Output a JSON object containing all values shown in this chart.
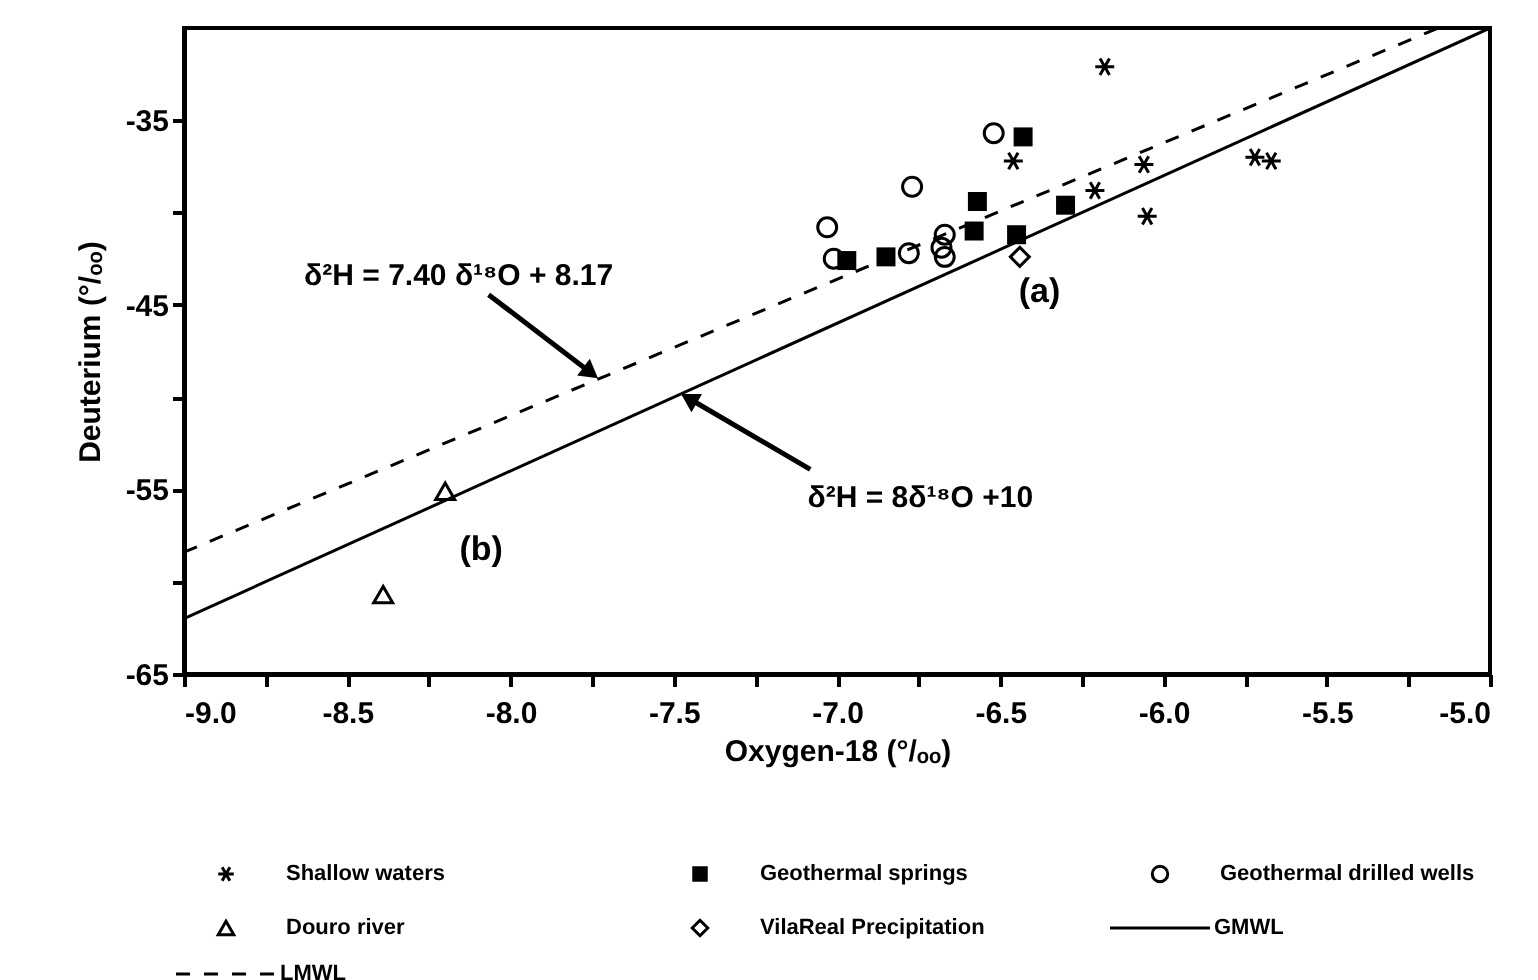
{
  "chart_data": {
    "type": "scatter",
    "xlabel": "Oxygen-18 (°/ₒₒ)",
    "ylabel": "Deuterium (°/ₒₒ)",
    "xlim": [
      -9.0,
      -5.0
    ],
    "ylim": [
      -65,
      -30
    ],
    "xticks": [
      {
        "value": -9,
        "label": "-9.0"
      },
      {
        "value": -8.75,
        "label": null
      },
      {
        "value": -8.5,
        "label": "-8.5"
      },
      {
        "value": -8.25,
        "label": null
      },
      {
        "value": -8,
        "label": "-8.0"
      },
      {
        "value": -7.75,
        "label": null
      },
      {
        "value": -7.5,
        "label": "-7.5"
      },
      {
        "value": -7.25,
        "label": null
      },
      {
        "value": -7,
        "label": "-7.0"
      },
      {
        "value": -6.75,
        "label": null
      },
      {
        "value": -6.5,
        "label": "-6.5"
      },
      {
        "value": -6.25,
        "label": null
      },
      {
        "value": -6,
        "label": "-6.0"
      },
      {
        "value": -5.75,
        "label": null
      },
      {
        "value": -5.5,
        "label": "-5.5"
      },
      {
        "value": -5.25,
        "label": null
      },
      {
        "value": -5,
        "label": "-5.0"
      }
    ],
    "yticks": [
      -65,
      {
        "value": -60,
        "label": null
      },
      -55,
      {
        "value": -50,
        "label": null
      },
      -45,
      {
        "value": -40,
        "label": null
      },
      -35
    ],
    "grid": false,
    "legend": "bottom",
    "series": [
      {
        "name": "Shallow waters",
        "marker": "cross",
        "color": "#000000",
        "x": [
          -6.18,
          -6.46,
          -6.06,
          -5.72,
          -5.67,
          -6.21,
          -6.05
        ],
        "values": [
          -32.1,
          -37.2,
          -37.4,
          -37.0,
          -37.2,
          -38.8,
          -40.2
        ]
      },
      {
        "name": "Geothermal springs",
        "marker": "square",
        "color": "#000000",
        "x": [
          -6.43,
          -6.57,
          -6.58,
          -6.45,
          -6.3,
          -6.85,
          -6.97
        ],
        "values": [
          -35.9,
          -39.4,
          -41.0,
          -41.2,
          -39.6,
          -42.4,
          -42.6
        ]
      },
      {
        "name": "Geothermal drilled wells",
        "marker": "circle",
        "color": "#000000",
        "x": [
          -6.52,
          -6.77,
          -6.78,
          -6.67,
          -6.68,
          -6.67,
          -7.03,
          -7.01
        ],
        "values": [
          -35.7,
          -38.6,
          -42.2,
          -41.2,
          -41.9,
          -42.4,
          -40.8,
          -42.5
        ]
      },
      {
        "name": "Douro river",
        "marker": "triangle",
        "color": "#000000",
        "x": [
          -8.2,
          -8.39
        ],
        "values": [
          -55.1,
          -60.7
        ]
      },
      {
        "name": "VilaReal Precipitation",
        "marker": "diamond",
        "color": "#000000",
        "x": [
          -6.44
        ],
        "values": [
          -42.4
        ]
      },
      {
        "name": "GMWL",
        "type": "line",
        "line_style": "solid",
        "color": "#000000",
        "x": [
          -9.0,
          -5.0
        ],
        "values": [
          -62.0,
          -30.0
        ]
      },
      {
        "name": "LMWL",
        "type": "line",
        "line_style": "dashed",
        "color": "#000000",
        "x": [
          -9.0,
          -5.158
        ],
        "values": [
          -58.4,
          -30.0
        ]
      }
    ],
    "annotations": [
      {
        "text": "δ²H = 7.40 δ¹⁸O + 8.17",
        "x": -7.73,
        "y": -49.0
      },
      {
        "text": "δ²H = 8δ¹⁸O +10",
        "x": -7.48,
        "y": -49.8
      },
      "(a)",
      "(b)"
    ]
  }
}
